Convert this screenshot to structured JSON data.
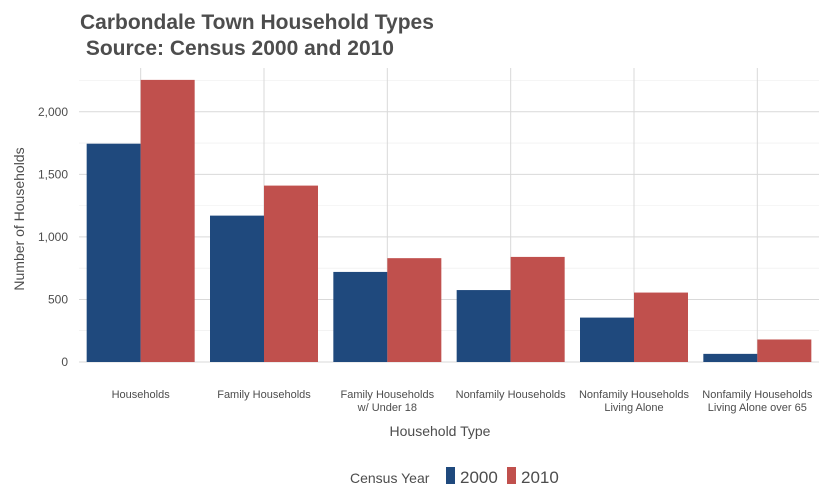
{
  "chart_data": {
    "type": "bar",
    "title_line1": "Carbondale Town Household Types",
    "title_line2": " Source: Census 2000 and 2010",
    "xlabel": "Household Type",
    "ylabel": "Number of Households",
    "ylim": [
      0,
      2350
    ],
    "y_ticks": [
      0,
      500,
      1000,
      1500,
      2000
    ],
    "y_tick_labels": [
      "0",
      "500",
      "1,000",
      "1,500",
      "2,000"
    ],
    "categories": [
      [
        "Households"
      ],
      [
        "Family Households"
      ],
      [
        "Family Households",
        "w/ Under 18"
      ],
      [
        "Nonfamily Households"
      ],
      [
        "Nonfamily Households",
        "Living Alone"
      ],
      [
        "Nonfamily Households",
        "Living Alone over 65"
      ]
    ],
    "series": [
      {
        "name": "2000",
        "color": "#1f497d",
        "values": [
          1745,
          1170,
          720,
          575,
          355,
          65
        ]
      },
      {
        "name": "2010",
        "color": "#c0504d",
        "values": [
          2255,
          1410,
          830,
          840,
          555,
          180
        ]
      }
    ],
    "legend": {
      "title": "Census Year",
      "position": "bottom"
    },
    "grid": true
  }
}
